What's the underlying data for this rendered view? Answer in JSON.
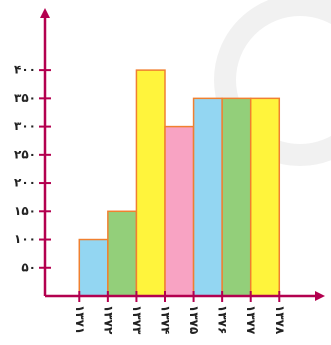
{
  "chart_data": {
    "type": "histogram",
    "bins": [
      1371,
      1372,
      1373,
      1374,
      1375,
      1376,
      1377,
      1378
    ],
    "values": [
      100,
      150,
      400,
      300,
      350,
      350,
      350
    ],
    "colors": [
      "#93d6f2",
      "#93cf7a",
      "#fff43c",
      "#f8a3c3",
      "#93d6f2",
      "#93cf7a",
      "#fff43c"
    ],
    "edge_color": "#f08030",
    "axis_color": "#b3004f",
    "xlim": [
      1369.8,
      1379.6
    ],
    "xticks": [
      {
        "value": 1371,
        "label": "۱۳۷۱"
      },
      {
        "value": 1372,
        "label": "۱۳۷۲"
      },
      {
        "value": 1373,
        "label": "۱۳۷۳"
      },
      {
        "value": 1374,
        "label": "۱۳۷۴"
      },
      {
        "value": 1375,
        "label": "۱۳۷۵"
      },
      {
        "value": 1376,
        "label": "۱۳۷۶"
      },
      {
        "value": 1377,
        "label": "۱۳۷۷"
      },
      {
        "value": 1378,
        "label": "۱۳۷۸"
      }
    ],
    "ylim": [
      0,
      510
    ],
    "yticks": [
      {
        "value": 50,
        "label": "۵۰"
      },
      {
        "value": 100,
        "label": "۱۰۰"
      },
      {
        "value": 150,
        "label": "۱۵۰"
      },
      {
        "value": 200,
        "label": "۲۰۰"
      },
      {
        "value": 250,
        "label": "۲۵۰"
      },
      {
        "value": 300,
        "label": "۳۰۰"
      },
      {
        "value": 350,
        "label": "۳۵۰"
      },
      {
        "value": 400,
        "label": "۴۰۰"
      }
    ]
  }
}
